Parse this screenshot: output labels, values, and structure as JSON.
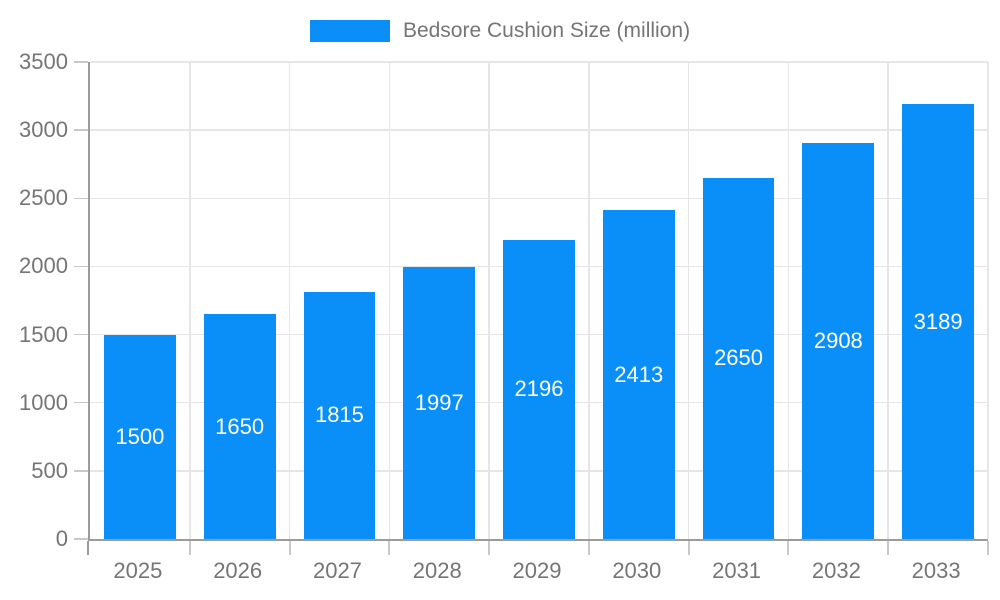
{
  "chart_data": {
    "type": "bar",
    "title": "Bedsore Cushion Size (million)",
    "categories": [
      "2025",
      "2026",
      "2027",
      "2028",
      "2029",
      "2030",
      "2031",
      "2032",
      "2033"
    ],
    "values": [
      1500,
      1650,
      1815,
      1997,
      2196,
      2413,
      2650,
      2908,
      3189
    ],
    "xlabel": "",
    "ylabel": "",
    "ylim": [
      0,
      3500
    ],
    "yticks": [
      0,
      500,
      1000,
      1500,
      2000,
      2500,
      3000,
      3500
    ],
    "grid": true,
    "legend_position": "top",
    "value_labels": "centered-inside-bars",
    "colors": {
      "bar": "#0a8ff9",
      "value_label": "#ffffff",
      "axis_text": "#757575",
      "gridline": "#e6e6e6",
      "axis_line": "#9b9b9b",
      "tick": "#c9c9c9",
      "background": "#ffffff"
    }
  }
}
